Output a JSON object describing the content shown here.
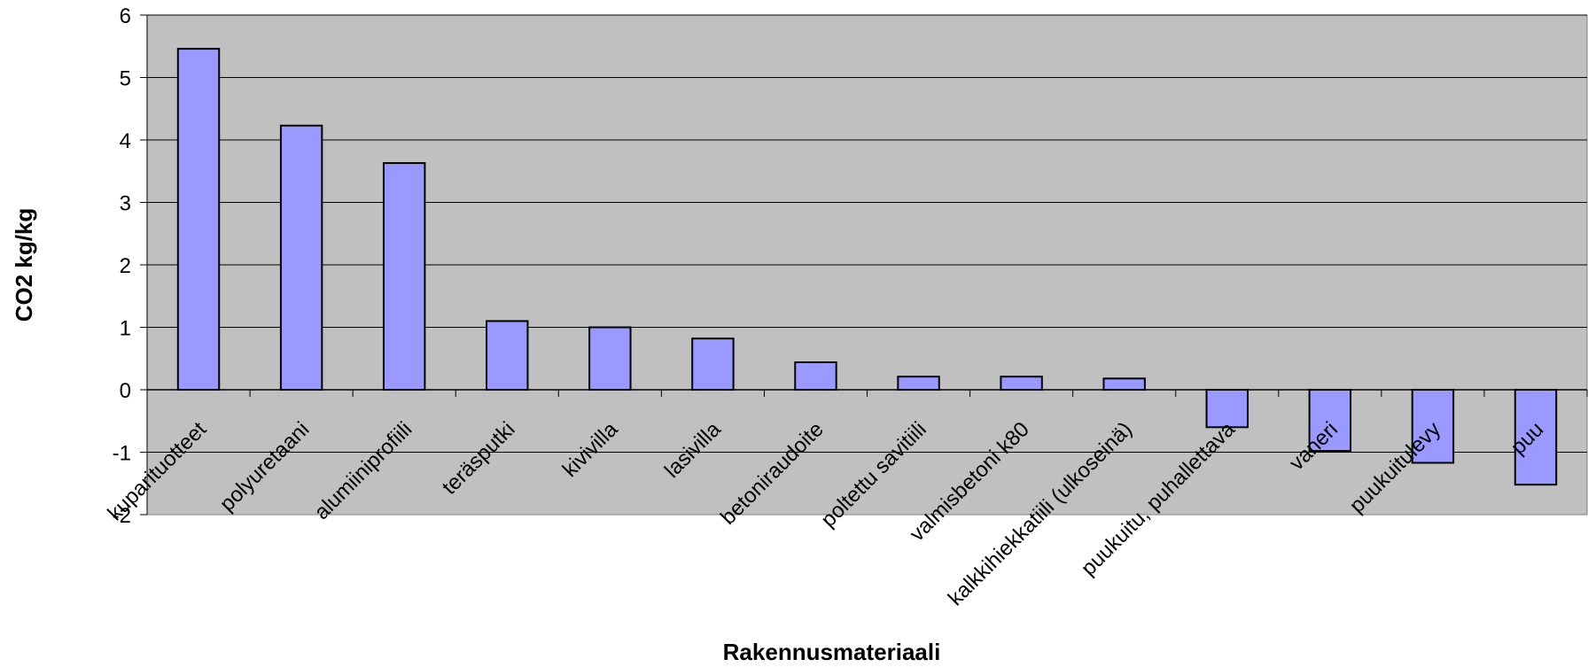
{
  "chart_data": {
    "type": "bar",
    "title": "",
    "xlabel": "Rakennusmateriaali",
    "ylabel": "CO2 kg/kg",
    "ylim": [
      -2,
      6
    ],
    "yticks": [
      -2,
      -1,
      0,
      1,
      2,
      3,
      4,
      5,
      6
    ],
    "grid": true,
    "legend": "none",
    "categories": [
      "kuparituotteet",
      "polyuretaani",
      "alumiiniprofiili",
      "teräsputki",
      "kivivilla",
      "lasivilla",
      "betoniraudoite",
      "poltettu savitiili",
      "valmisbetoni k80",
      "kalkkihiekkatiili (ulkoseinä)",
      "puukuitu, puhallettava",
      "vaneri",
      "puukuitulevy",
      "puu"
    ],
    "values": [
      5.46,
      4.23,
      3.63,
      1.1,
      1.0,
      0.82,
      0.44,
      0.21,
      0.21,
      0.18,
      -0.6,
      -0.98,
      -1.17,
      -1.52
    ],
    "colors": {
      "bar_fill": "#9999ff",
      "bar_stroke": "#000000",
      "plot_background": "#c0c0c0",
      "gridline": "#000000"
    }
  }
}
